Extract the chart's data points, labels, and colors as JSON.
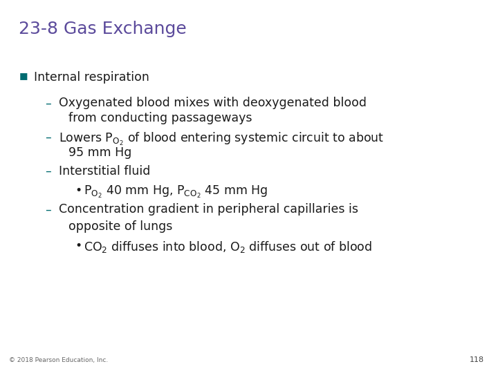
{
  "title": "23-8 Gas Exchange",
  "title_color": "#5B4A9B",
  "title_fontsize": 18,
  "background_color": "#FFFFFF",
  "body_color": "#1A1A1A",
  "body_fontsize": 12.5,
  "footer_text": "© 2018 Pearson Education, Inc.",
  "page_number": "118",
  "teal_color": "#006B70",
  "dash_color": "#006B70"
}
